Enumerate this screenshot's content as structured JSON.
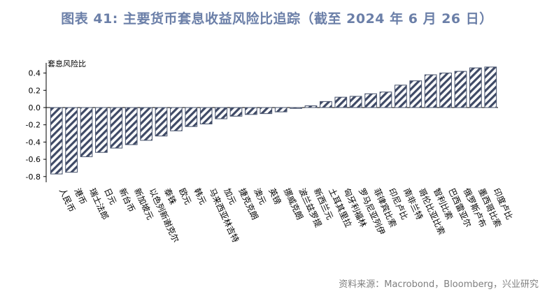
{
  "title": "图表 41: 主要货币套息收益风险比追踪（截至 2024 年 6 月 26 日）",
  "source": "资料来源：Macrobond，Bloomberg，兴业研究",
  "colors": {
    "bar_stroke": "#44506a",
    "hatch": "#3f4a66",
    "title": "#6b7fa8"
  },
  "chart_data": {
    "type": "bar",
    "ylabel": "套息风险比",
    "xlabel": "",
    "ylim": [
      -0.85,
      0.5
    ],
    "yticks": [
      -0.8,
      -0.6,
      -0.4,
      -0.2,
      0.0,
      0.2,
      0.4
    ],
    "ytick_labels": [
      "-0.8",
      "-0.6",
      "-0.4",
      "-0.2",
      "0.0",
      "0.2",
      "0.4"
    ],
    "categories": [
      "人民币",
      "港币",
      "瑞士法郎",
      "日元",
      "新台币",
      "新加坡元",
      "以色列新谢克尔",
      "泰铢",
      "欧元",
      "韩元",
      "马来西亚林吉特",
      "加元",
      "捷克克朗",
      "澳元",
      "英镑",
      "挪威克朗",
      "波兰兹罗提",
      "新西兰元",
      "土耳其里拉",
      "匈牙利福林",
      "罗马尼亚列伊",
      "菲律宾比索",
      "印尼卢比",
      "南非兰特",
      "哥伦比亚比索",
      "智利比索",
      "巴西雷亚尔",
      "俄罗斯卢布",
      "墨西哥比索",
      "印度卢比"
    ],
    "values": [
      -0.77,
      -0.75,
      -0.57,
      -0.52,
      -0.47,
      -0.43,
      -0.38,
      -0.33,
      -0.27,
      -0.22,
      -0.19,
      -0.13,
      -0.1,
      -0.08,
      -0.07,
      -0.05,
      -0.01,
      0.02,
      0.07,
      0.12,
      0.13,
      0.16,
      0.18,
      0.26,
      0.31,
      0.38,
      0.4,
      0.42,
      0.46,
      0.47
    ]
  }
}
